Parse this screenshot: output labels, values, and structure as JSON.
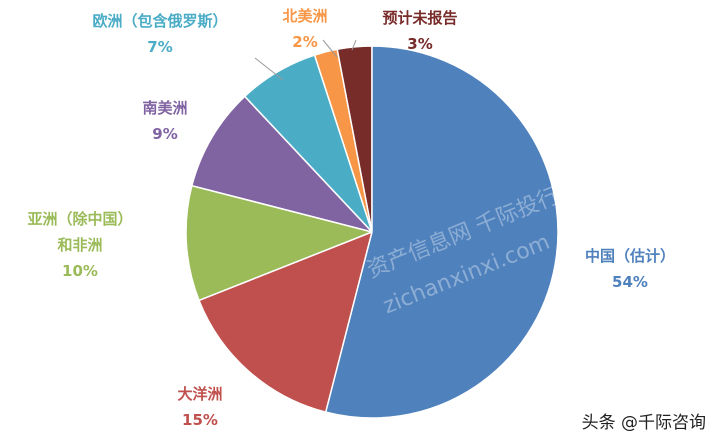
{
  "chart_data": {
    "type": "pie",
    "categories": [
      "中国（估计）",
      "大洋洲",
      "亚洲（除中国）\n和非洲",
      "南美洲",
      "欧洲（包含俄罗斯）",
      "北美洲",
      "预计未报告"
    ],
    "values": [
      54,
      15,
      10,
      9,
      7,
      2,
      3
    ],
    "value_labels": [
      "54%",
      "15%",
      "10%",
      "9%",
      "7%",
      "2%",
      "3%"
    ],
    "colors": [
      "#4f81bd",
      "#c0504d",
      "#9bbb59",
      "#8064a2",
      "#4bacc6",
      "#f79646",
      "#772c2a"
    ]
  },
  "watermarks": [
    "资产信息网 千际投行",
    "zichanxinxi.com",
    "头条 @千际咨询"
  ]
}
